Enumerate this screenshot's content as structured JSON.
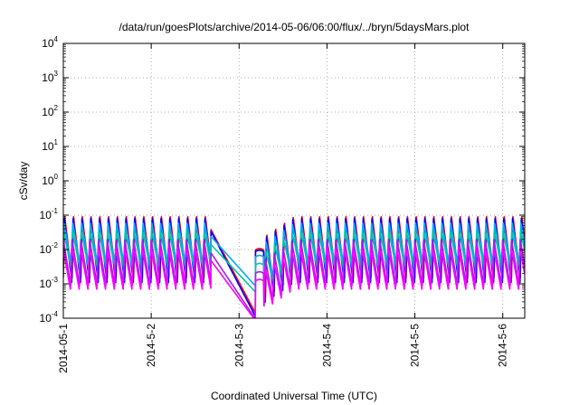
{
  "chart_data": {
    "type": "line",
    "title": "/data/run/goesPlots/archive/2014-05-06/06:00/flux/../bryn/5daysMars.plot",
    "xlabel": "Coordinated Universal Time (UTC)",
    "ylabel": "cSv/day",
    "yscale": "log",
    "ylim": [
      0.0001,
      10000
    ],
    "xlim_days": [
      0,
      5.25
    ],
    "grid": true,
    "legend": "none",
    "x_ticks": [
      {
        "label": "2014-05-1",
        "day": 0
      },
      {
        "label": "2014-5-2",
        "day": 1
      },
      {
        "label": "2014-5-3",
        "day": 2
      },
      {
        "label": "2014-5-4",
        "day": 3
      },
      {
        "label": "2014-5-5",
        "day": 4
      },
      {
        "label": "2014-5-6",
        "day": 5
      }
    ],
    "y_ticks": [
      {
        "base": "10",
        "exp": "-4",
        "value": 0.0001
      },
      {
        "base": "10",
        "exp": "-3",
        "value": 0.001
      },
      {
        "base": "10",
        "exp": "-2",
        "value": 0.01
      },
      {
        "base": "10",
        "exp": "-1",
        "value": 0.1
      },
      {
        "base": "10",
        "exp": "0",
        "value": 1
      },
      {
        "base": "10",
        "exp": "1",
        "value": 10
      },
      {
        "base": "10",
        "exp": "2",
        "value": 100
      },
      {
        "base": "10",
        "exp": "3",
        "value": 1000
      },
      {
        "base": "10",
        "exp": "4",
        "value": 10000
      }
    ],
    "pattern": {
      "cycles_per_day": 10,
      "dip_start_day": 1.68,
      "dip_min_day": 2.18,
      "recovery_day": 2.28
    },
    "series": [
      {
        "color": "#ff0000",
        "peak": 0.095,
        "trough": 0.0015,
        "dip_min": 0.00015
      },
      {
        "color": "#0000ff",
        "peak": 0.085,
        "trough": 0.0011,
        "dip_min": 0.00012
      },
      {
        "color": "#00aaff",
        "peak": 0.06,
        "trough": 0.0035,
        "dip_min": 0.0009
      },
      {
        "color": "#00c8a0",
        "peak": 0.035,
        "trough": 0.0028,
        "dip_min": 0.0006
      },
      {
        "color": "#a020f0",
        "peak": 0.02,
        "trough": 0.0009,
        "dip_min": 0.0001
      },
      {
        "color": "#ff00ff",
        "peak": 0.012,
        "trough": 0.0007,
        "dip_min": 9e-05
      }
    ]
  }
}
